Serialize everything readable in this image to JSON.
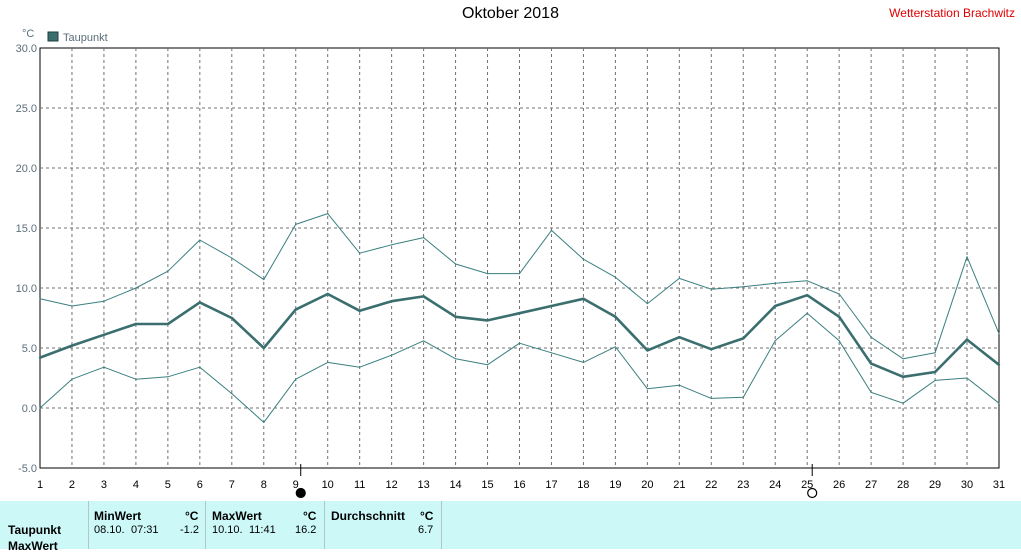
{
  "title": "Oktober 2018",
  "station": "Wetterstation Brachwitz",
  "unit": "°C",
  "chart_data": {
    "type": "line",
    "title": "Oktober 2018",
    "ylabel": "°C",
    "ylim": [
      -5,
      30
    ],
    "yticks": [
      "30.0",
      "25.0",
      "20.0",
      "15.0",
      "10.0",
      "5.0",
      "0.0",
      "-5.0"
    ],
    "x": [
      1,
      2,
      3,
      4,
      5,
      6,
      7,
      8,
      9,
      10,
      11,
      12,
      13,
      14,
      15,
      16,
      17,
      18,
      19,
      20,
      21,
      22,
      23,
      24,
      25,
      26,
      27,
      28,
      29,
      30,
      31
    ],
    "legend": "top-left",
    "grid": true,
    "series": [
      {
        "name": "Taupunkt",
        "role": "mean",
        "color": "#3b6e6e",
        "values": [
          4.2,
          5.2,
          6.1,
          7.0,
          7.0,
          8.8,
          7.5,
          5.0,
          8.2,
          9.5,
          8.1,
          8.9,
          9.3,
          7.6,
          7.3,
          7.9,
          8.5,
          9.1,
          7.6,
          4.8,
          5.9,
          4.9,
          5.8,
          8.5,
          9.4,
          7.6,
          3.7,
          2.6,
          3.0,
          5.7,
          3.6
        ]
      },
      {
        "role": "max",
        "color": "#3b7f7f",
        "values": [
          9.1,
          8.5,
          8.9,
          10.0,
          11.4,
          14.0,
          12.5,
          10.7,
          15.3,
          16.2,
          12.9,
          13.6,
          14.2,
          12.0,
          11.2,
          11.2,
          14.8,
          12.4,
          10.9,
          8.7,
          10.8,
          9.9,
          10.1,
          10.4,
          10.6,
          9.5,
          5.9,
          4.1,
          4.6,
          12.6,
          6.2
        ]
      },
      {
        "role": "min",
        "color": "#3b7f7f",
        "values": [
          0.0,
          2.4,
          3.4,
          2.4,
          2.6,
          3.4,
          1.2,
          -1.2,
          2.4,
          3.8,
          3.4,
          4.4,
          5.6,
          4.1,
          3.6,
          5.4,
          4.6,
          3.8,
          5.1,
          1.6,
          1.9,
          0.8,
          0.9,
          5.6,
          7.9,
          5.6,
          1.3,
          0.4,
          2.3,
          2.5,
          0.4
        ]
      }
    ],
    "moon_phases": [
      {
        "day": 9,
        "phase": "new"
      },
      {
        "day": 25,
        "phase": "full"
      }
    ]
  },
  "footer": {
    "row_labels": [
      "Taupunkt",
      "MaxWert"
    ],
    "min_label": "MinWert",
    "min_unit": "°C",
    "min_date": "08.10.",
    "min_time": "07:31",
    "min_value": "-1.2",
    "max_label": "MaxWert",
    "max_unit": "°C",
    "max_date": "10.10.",
    "max_time": "11:41",
    "max_value": "16.2",
    "avg_label": "Durchschnitt",
    "avg_unit": "°C",
    "avg_value": "6.7"
  }
}
